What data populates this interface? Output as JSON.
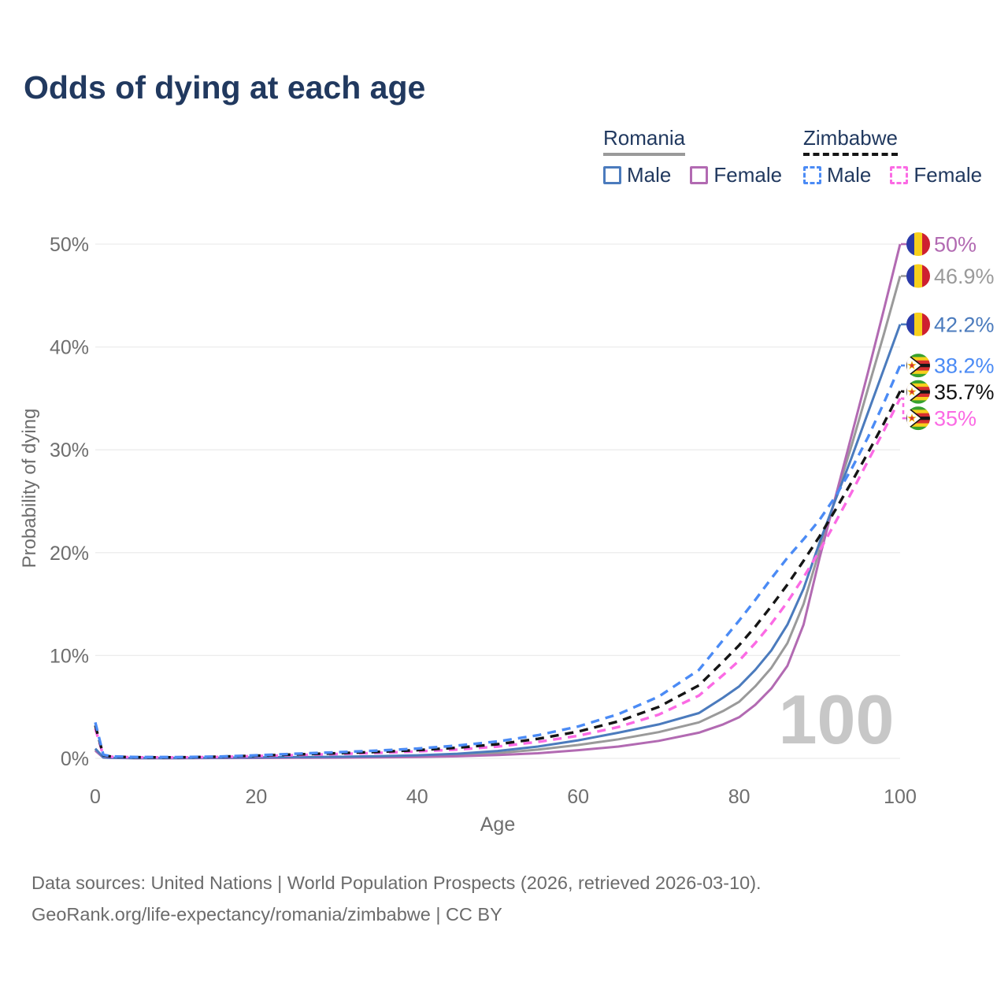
{
  "title": "Odds of dying at each age",
  "legend": {
    "groups": [
      {
        "label": "Romania",
        "line_color": "#9a9a9a",
        "line_style": "solid",
        "items": [
          {
            "label": "Male",
            "color": "#4b7bbd",
            "style": "solid"
          },
          {
            "label": "Female",
            "color": "#b26ab2",
            "style": "solid"
          }
        ]
      },
      {
        "label": "Zimbabwe",
        "line_color": "#151515",
        "line_style": "dashed",
        "items": [
          {
            "label": "Male",
            "color": "#4b8bf5",
            "style": "dashed"
          },
          {
            "label": "Female",
            "color": "#fb6ae4",
            "style": "dashed"
          }
        ]
      }
    ]
  },
  "chart_data": {
    "type": "line",
    "title": "Odds of dying at each age",
    "xlabel": "Age",
    "ylabel": "Probability of dying",
    "x_ticks": [
      0,
      20,
      40,
      60,
      80,
      100
    ],
    "y_ticks_percent": [
      "0%",
      "10%",
      "20%",
      "30%",
      "40%",
      "50%"
    ],
    "xlim": [
      0,
      100
    ],
    "ylim_percent": [
      0,
      50
    ],
    "grid": "horizontal",
    "legend_position": "top-right",
    "watermark": "100",
    "ages": [
      0,
      1,
      2,
      5,
      10,
      15,
      20,
      25,
      30,
      35,
      40,
      45,
      50,
      55,
      60,
      65,
      70,
      75,
      78,
      80,
      82,
      84,
      86,
      88,
      90,
      92,
      94,
      96,
      98,
      100
    ],
    "series": [
      {
        "name": "Romania male",
        "country": "Romania",
        "sex": "male",
        "color": "#4b7bbd",
        "dash": "solid",
        "flag": "romania",
        "end_label": "42.2%",
        "values": [
          0.95,
          0.1,
          0.05,
          0.03,
          0.03,
          0.05,
          0.09,
          0.12,
          0.15,
          0.21,
          0.3,
          0.45,
          0.72,
          1.15,
          1.75,
          2.5,
          3.3,
          4.4,
          5.9,
          7.0,
          8.6,
          10.5,
          13.0,
          16.5,
          21.0,
          25.2,
          29.3,
          33.6,
          37.9,
          42.2
        ]
      },
      {
        "name": "Romania female",
        "country": "Romania",
        "sex": "female",
        "color": "#b26ab2",
        "dash": "solid",
        "flag": "romania",
        "end_label": "50%",
        "values": [
          0.75,
          0.08,
          0.04,
          0.02,
          0.02,
          0.03,
          0.04,
          0.05,
          0.07,
          0.09,
          0.13,
          0.2,
          0.32,
          0.5,
          0.8,
          1.15,
          1.7,
          2.5,
          3.3,
          4.0,
          5.2,
          6.8,
          9.0,
          13.0,
          19.5,
          25.5,
          31.5,
          37.5,
          43.7,
          50.0
        ]
      },
      {
        "name": "Romania both sexes",
        "country": "Romania",
        "sex": "both",
        "color": "#9a9a9a",
        "dash": "solid",
        "flag": "romania",
        "end_label": "46.9%",
        "values": [
          0.85,
          0.09,
          0.045,
          0.025,
          0.025,
          0.04,
          0.07,
          0.09,
          0.11,
          0.15,
          0.22,
          0.33,
          0.52,
          0.85,
          1.3,
          1.85,
          2.55,
          3.5,
          4.6,
          5.5,
          7.0,
          8.8,
          11.2,
          15.0,
          20.3,
          25.4,
          30.5,
          35.9,
          41.3,
          46.9
        ]
      },
      {
        "name": "Zimbabwe male",
        "country": "Zimbabwe",
        "sex": "male",
        "color": "#4b8bf5",
        "dash": "dashed",
        "flag": "zimbabwe",
        "end_label": "38.2%",
        "values": [
          3.5,
          0.35,
          0.2,
          0.13,
          0.12,
          0.17,
          0.3,
          0.45,
          0.6,
          0.75,
          0.95,
          1.25,
          1.65,
          2.25,
          3.1,
          4.3,
          6.0,
          8.6,
          11.5,
          13.4,
          15.4,
          17.5,
          19.5,
          21.3,
          23.2,
          25.5,
          28.2,
          31.2,
          34.6,
          38.2
        ]
      },
      {
        "name": "Zimbabwe both sexes",
        "country": "Zimbabwe",
        "sex": "both",
        "color": "#151515",
        "dash": "dashed",
        "flag": "zimbabwe",
        "end_label": "35.7%",
        "values": [
          3.2,
          0.3,
          0.17,
          0.11,
          0.1,
          0.15,
          0.26,
          0.38,
          0.5,
          0.63,
          0.8,
          1.03,
          1.38,
          1.9,
          2.6,
          3.6,
          5.0,
          7.1,
          9.4,
          11.0,
          12.8,
          14.8,
          16.9,
          19.2,
          21.6,
          24.2,
          26.9,
          29.7,
          32.6,
          35.7
        ]
      },
      {
        "name": "Zimbabwe female",
        "country": "Zimbabwe",
        "sex": "female",
        "color": "#fb6ae4",
        "dash": "dashed",
        "flag": "zimbabwe",
        "end_label": "35%",
        "values": [
          2.9,
          0.26,
          0.15,
          0.1,
          0.09,
          0.13,
          0.22,
          0.32,
          0.42,
          0.53,
          0.67,
          0.86,
          1.15,
          1.6,
          2.2,
          3.05,
          4.25,
          6.1,
          8.1,
          9.5,
          11.2,
          13.1,
          15.2,
          17.6,
          20.2,
          23.0,
          25.9,
          28.9,
          31.9,
          35.0
        ]
      }
    ],
    "colors": {
      "grid": "#ececec",
      "axis_text": "#6e6e6e",
      "watermark": "#c7c7c7",
      "romania_flag": [
        "#2a3aa8",
        "#f7d01c",
        "#ce2030"
      ],
      "zimbabwe_flag": [
        "#37a12e",
        "#f7d01c",
        "#d62f2f",
        "#161616"
      ]
    }
  },
  "footer": {
    "line1": "Data sources: United Nations | World Population Prospects (2026, retrieved 2026-03-10).",
    "line2": "GeoRank.org/life-expectancy/romania/zimbabwe | CC BY"
  }
}
